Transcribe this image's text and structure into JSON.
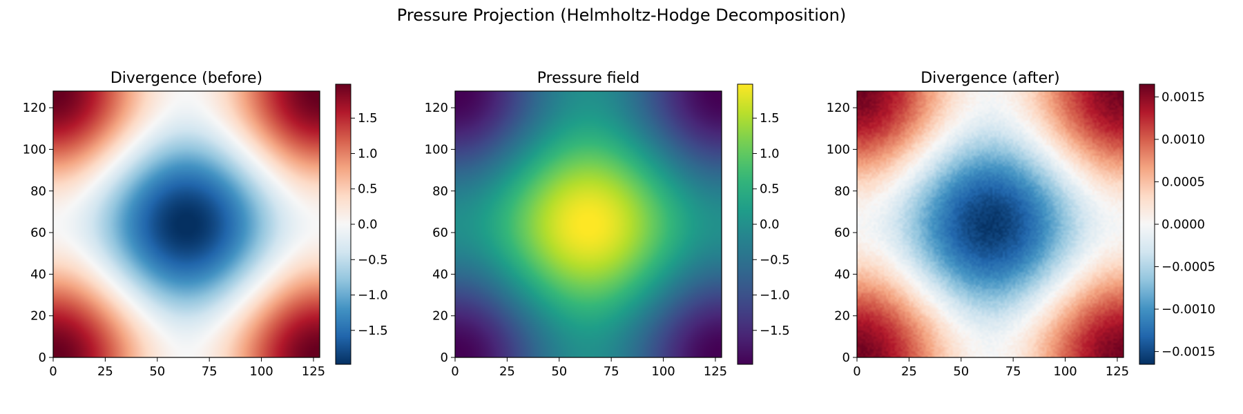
{
  "figure": {
    "suptitle": "Pressure Projection (Helmholtz-Hodge Decomposition)"
  },
  "chart_data": [
    {
      "type": "heatmap",
      "title": "Divergence (before)",
      "colormap": "RdBu_r",
      "field": "cos(2*pi*x/128)+cos(2*pi*y/128)",
      "grid_size": 128,
      "xlim": [
        0,
        128
      ],
      "ylim": [
        0,
        128
      ],
      "xticks": [
        0,
        25,
        50,
        75,
        100,
        125
      ],
      "yticks": [
        0,
        20,
        40,
        60,
        80,
        100,
        120
      ],
      "xtick_labels": [
        "0",
        "25",
        "50",
        "75",
        "100",
        "125"
      ],
      "ytick_labels": [
        "0",
        "20",
        "40",
        "60",
        "80",
        "100",
        "120"
      ],
      "colorbar": {
        "range": [
          -1.98,
          1.98
        ],
        "ticks": [
          -1.5,
          -1.0,
          -0.5,
          0.0,
          0.5,
          1.0,
          1.5
        ],
        "tick_labels": [
          "−1.5",
          "−1.0",
          "−0.5",
          "0.0",
          "0.5",
          "1.0",
          "1.5"
        ]
      }
    },
    {
      "type": "heatmap",
      "title": "Pressure field",
      "colormap": "viridis",
      "field": "-(cos(2*pi*x/128)+cos(2*pi*y/128))",
      "grid_size": 128,
      "xlim": [
        0,
        128
      ],
      "ylim": [
        0,
        128
      ],
      "xticks": [
        0,
        25,
        50,
        75,
        100,
        125
      ],
      "yticks": [
        0,
        20,
        40,
        60,
        80,
        100,
        120
      ],
      "xtick_labels": [
        "0",
        "25",
        "50",
        "75",
        "100",
        "125"
      ],
      "ytick_labels": [
        "0",
        "20",
        "40",
        "60",
        "80",
        "100",
        "120"
      ],
      "colorbar": {
        "range": [
          -1.98,
          1.98
        ],
        "ticks": [
          -1.5,
          -1.0,
          -0.5,
          0.0,
          0.5,
          1.0,
          1.5
        ],
        "tick_labels": [
          "−1.5",
          "−1.0",
          "−0.5",
          "0.0",
          "0.5",
          "1.0",
          "1.5"
        ]
      }
    },
    {
      "type": "heatmap",
      "title": "Divergence (after)",
      "colormap": "RdBu_r",
      "field": "0.0008*(cos(2*pi*x/128)+cos(2*pi*y/128)) + noise",
      "grid_size": 128,
      "xlim": [
        0,
        128
      ],
      "ylim": [
        0,
        128
      ],
      "xticks": [
        0,
        25,
        50,
        75,
        100,
        125
      ],
      "yticks": [
        0,
        20,
        40,
        60,
        80,
        100,
        120
      ],
      "xtick_labels": [
        "0",
        "25",
        "50",
        "75",
        "100",
        "125"
      ],
      "ytick_labels": [
        "0",
        "20",
        "40",
        "60",
        "80",
        "100",
        "120"
      ],
      "colorbar": {
        "range": [
          -0.00165,
          0.00165
        ],
        "ticks": [
          -0.0015,
          -0.001,
          -0.0005,
          0.0,
          0.0005,
          0.001,
          0.0015
        ],
        "tick_labels": [
          "−0.0015",
          "−0.0010",
          "−0.0005",
          "0.0000",
          "0.0005",
          "0.0010",
          "0.0015"
        ]
      }
    }
  ]
}
